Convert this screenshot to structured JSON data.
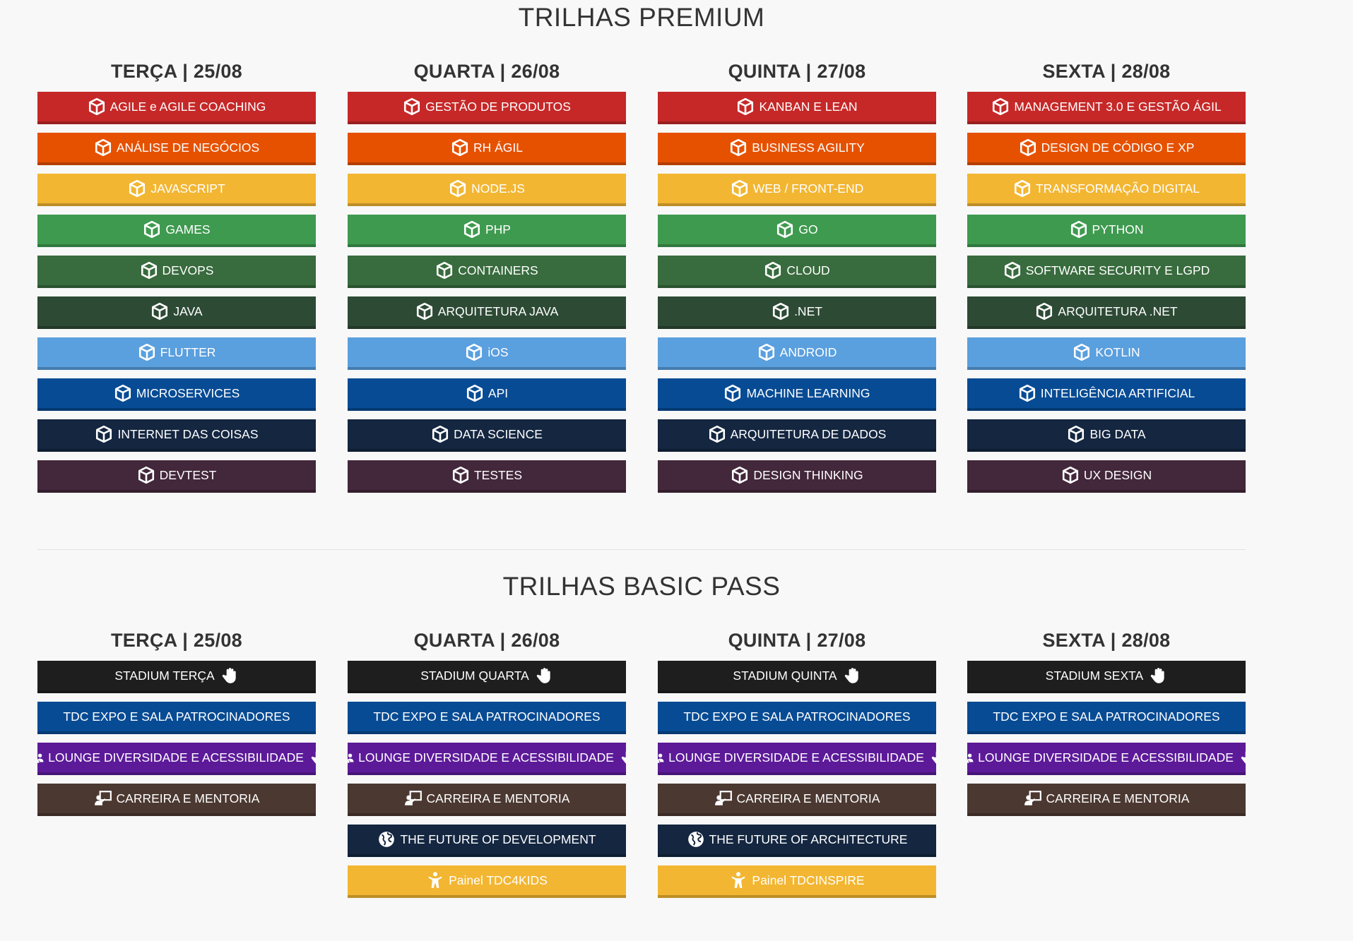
{
  "premium": {
    "title": "TRILHAS PREMIUM",
    "days": [
      {
        "label": "TERÇA | 25/08",
        "tracks": [
          {
            "label": "AGILE e AGILE COACHING",
            "color": "#c62828"
          },
          {
            "label": "ANÁLISE DE NEGÓCIOS",
            "color": "#e65100"
          },
          {
            "label": "JAVASCRIPT",
            "color": "#f2b632"
          },
          {
            "label": "GAMES",
            "color": "#3e9a4f"
          },
          {
            "label": "DEVOPS",
            "color": "#386b3d"
          },
          {
            "label": "JAVA",
            "color": "#2d4a35"
          },
          {
            "label": "FLUTTER",
            "color": "#5a9fde"
          },
          {
            "label": "MICROSERVICES",
            "color": "#074b94"
          },
          {
            "label": "INTERNET DAS COISAS",
            "color": "#142640"
          },
          {
            "label": "DEVTEST",
            "color": "#43273b"
          }
        ]
      },
      {
        "label": "QUARTA | 26/08",
        "tracks": [
          {
            "label": "GESTÃO DE PRODUTOS",
            "color": "#c62828"
          },
          {
            "label": "RH ÁGIL",
            "color": "#e65100"
          },
          {
            "label": "NODE.JS",
            "color": "#f2b632"
          },
          {
            "label": "PHP",
            "color": "#3e9a4f"
          },
          {
            "label": "CONTAINERS",
            "color": "#386b3d"
          },
          {
            "label": "ARQUITETURA JAVA",
            "color": "#2d4a35"
          },
          {
            "label": "iOS",
            "color": "#5a9fde"
          },
          {
            "label": "API",
            "color": "#074b94"
          },
          {
            "label": "DATA SCIENCE",
            "color": "#142640"
          },
          {
            "label": "TESTES",
            "color": "#43273b"
          }
        ]
      },
      {
        "label": "QUINTA | 27/08",
        "tracks": [
          {
            "label": "KANBAN E LEAN",
            "color": "#c62828"
          },
          {
            "label": "BUSINESS AGILITY",
            "color": "#e65100"
          },
          {
            "label": "WEB / FRONT-END",
            "color": "#f2b632"
          },
          {
            "label": "GO",
            "color": "#3e9a4f"
          },
          {
            "label": "CLOUD",
            "color": "#386b3d"
          },
          {
            "label": ".NET",
            "color": "#2d4a35"
          },
          {
            "label": "ANDROID",
            "color": "#5a9fde"
          },
          {
            "label": "MACHINE LEARNING",
            "color": "#074b94"
          },
          {
            "label": "ARQUITETURA DE DADOS",
            "color": "#142640"
          },
          {
            "label": "DESIGN THINKING",
            "color": "#43273b"
          }
        ]
      },
      {
        "label": "SEXTA | 28/08",
        "tracks": [
          {
            "label": "MANAGEMENT 3.0 E GESTÃO ÁGIL",
            "color": "#c62828"
          },
          {
            "label": "DESIGN DE CÓDIGO E XP",
            "color": "#e65100"
          },
          {
            "label": "TRANSFORMAÇÃO DIGITAL",
            "color": "#f2b632"
          },
          {
            "label": "PYTHON",
            "color": "#3e9a4f"
          },
          {
            "label": "SOFTWARE SECURITY E LGPD",
            "color": "#386b3d"
          },
          {
            "label": "ARQUITETURA .NET",
            "color": "#2d4a35"
          },
          {
            "label": "KOTLIN",
            "color": "#5a9fde"
          },
          {
            "label": "INTELIGÊNCIA ARTIFICIAL",
            "color": "#074b94"
          },
          {
            "label": "BIG DATA",
            "color": "#142640"
          },
          {
            "label": "UX DESIGN",
            "color": "#43273b"
          }
        ]
      }
    ]
  },
  "basic": {
    "title": "TRILHAS BASIC PASS",
    "days": [
      {
        "label": "TERÇA | 25/08",
        "tracks": [
          {
            "label": "STADIUM TERÇA",
            "color": "#1e1e1e",
            "icon": "hand-icon",
            "icon_pos": "after"
          },
          {
            "label": "TDC EXPO E SALA PATROCINADORES",
            "color": "#074b94",
            "icon": "none"
          },
          {
            "label": "LOUNGE DIVERSIDADE E ACESSIBILIDADE",
            "color": "#5c1a99",
            "icon": "users-icon",
            "icon_pos": "before",
            "icon2": "hand-icon"
          },
          {
            "label": "CARREIRA E MENTORIA",
            "color": "#4b3831",
            "icon": "teacher-icon",
            "icon_pos": "before"
          }
        ]
      },
      {
        "label": "QUARTA | 26/08",
        "tracks": [
          {
            "label": "STADIUM QUARTA",
            "color": "#1e1e1e",
            "icon": "hand-icon",
            "icon_pos": "after"
          },
          {
            "label": "TDC EXPO E SALA PATROCINADORES",
            "color": "#074b94",
            "icon": "none"
          },
          {
            "label": "LOUNGE DIVERSIDADE E ACESSIBILIDADE",
            "color": "#5c1a99",
            "icon": "users-icon",
            "icon_pos": "before",
            "icon2": "hand-icon"
          },
          {
            "label": "CARREIRA E MENTORIA",
            "color": "#4b3831",
            "icon": "teacher-icon",
            "icon_pos": "before"
          },
          {
            "label": "THE FUTURE OF DEVELOPMENT",
            "color": "#142640",
            "icon": "globe-icon",
            "icon_pos": "before"
          },
          {
            "label": "Painel TDC4KIDS",
            "color": "#f2b632",
            "icon": "child-icon",
            "icon_pos": "before"
          }
        ]
      },
      {
        "label": "QUINTA | 27/08",
        "tracks": [
          {
            "label": "STADIUM QUINTA",
            "color": "#1e1e1e",
            "icon": "hand-icon",
            "icon_pos": "after"
          },
          {
            "label": "TDC EXPO E SALA PATROCINADORES",
            "color": "#074b94",
            "icon": "none"
          },
          {
            "label": "LOUNGE DIVERSIDADE E ACESSIBILIDADE",
            "color": "#5c1a99",
            "icon": "users-icon",
            "icon_pos": "before",
            "icon2": "hand-icon"
          },
          {
            "label": "CARREIRA E MENTORIA",
            "color": "#4b3831",
            "icon": "teacher-icon",
            "icon_pos": "before"
          },
          {
            "label": "THE FUTURE OF ARCHITECTURE",
            "color": "#142640",
            "icon": "globe-icon",
            "icon_pos": "before"
          },
          {
            "label": "Painel TDCINSPIRE",
            "color": "#f2b632",
            "icon": "child-icon",
            "icon_pos": "before"
          }
        ]
      },
      {
        "label": "SEXTA | 28/08",
        "tracks": [
          {
            "label": "STADIUM SEXTA",
            "color": "#1e1e1e",
            "icon": "hand-icon",
            "icon_pos": "after"
          },
          {
            "label": "TDC EXPO E SALA PATROCINADORES",
            "color": "#074b94",
            "icon": "none"
          },
          {
            "label": "LOUNGE DIVERSIDADE E ACESSIBILIDADE",
            "color": "#5c1a99",
            "icon": "users-icon",
            "icon_pos": "before",
            "icon2": "hand-icon"
          },
          {
            "label": "CARREIRA E MENTORIA",
            "color": "#4b3831",
            "icon": "teacher-icon",
            "icon_pos": "before"
          }
        ]
      }
    ]
  }
}
